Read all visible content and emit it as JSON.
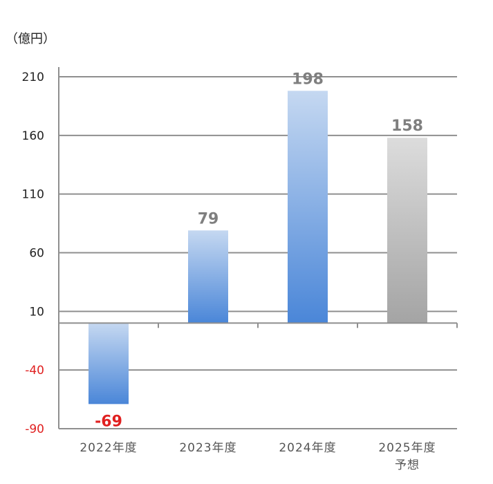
{
  "chart_data": {
    "type": "bar",
    "unit_label": "（億円）",
    "categories": [
      {
        "line1": "2022年度",
        "line2": ""
      },
      {
        "line1": "2023年度",
        "line2": ""
      },
      {
        "line1": "2024年度",
        "line2": ""
      },
      {
        "line1": "2025年度",
        "line2": "予想"
      }
    ],
    "values": [
      -69,
      79,
      198,
      158
    ],
    "value_labels": [
      "-69",
      "79",
      "198",
      "158"
    ],
    "yticks": [
      "210",
      "160",
      "110",
      "60",
      "10",
      "-40",
      "-90"
    ],
    "ylim": [
      -90,
      210
    ],
    "grid": true,
    "colors": {
      "actual_bar_top": "#c5d8f1",
      "actual_bar_bottom": "#4a86d8",
      "forecast_bar_top": "#dcdcdc",
      "forecast_bar_bottom": "#a4a4a4",
      "negative_text": "#e02020",
      "positive_label": "#7f7f7f",
      "tick_text": "#222222"
    }
  }
}
